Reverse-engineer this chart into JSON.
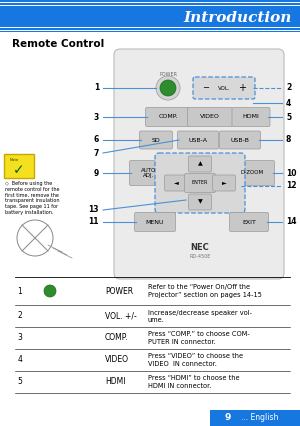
{
  "title": "Introduction",
  "section_title": "Remote Control",
  "header_bg": "#1777E0",
  "header_text_color": "#FFFFFF",
  "page_bg": "#FFFFFF",
  "page_num": "9",
  "page_label": "... English",
  "page_num_bg": "#1777E0",
  "table_rows": [
    [
      "1",
      "POWER",
      "Refer to the “Power On/Off the\nProjector” section on pages 14-15"
    ],
    [
      "2",
      "VOL. +/-",
      "Increase/decrease speaker vol-\nume."
    ],
    [
      "3",
      "COMP.",
      "Press “COMP.” to choose COM-\nPUTER IN connector."
    ],
    [
      "4",
      "VIDEO",
      "Press “VIDEO” to choose the\nVIDEO  IN connector."
    ],
    [
      "5",
      "HDMI",
      "Press “HDMI” to choose the\nHDMI IN connector."
    ]
  ],
  "note_text": "Before using the\nremote control for the\nfirst time, remove the\ntransparent insulation\ntape. See page 11 for\nbattery installation.",
  "line_color": "#4A90D9",
  "dashed_color": "#4A90D9"
}
